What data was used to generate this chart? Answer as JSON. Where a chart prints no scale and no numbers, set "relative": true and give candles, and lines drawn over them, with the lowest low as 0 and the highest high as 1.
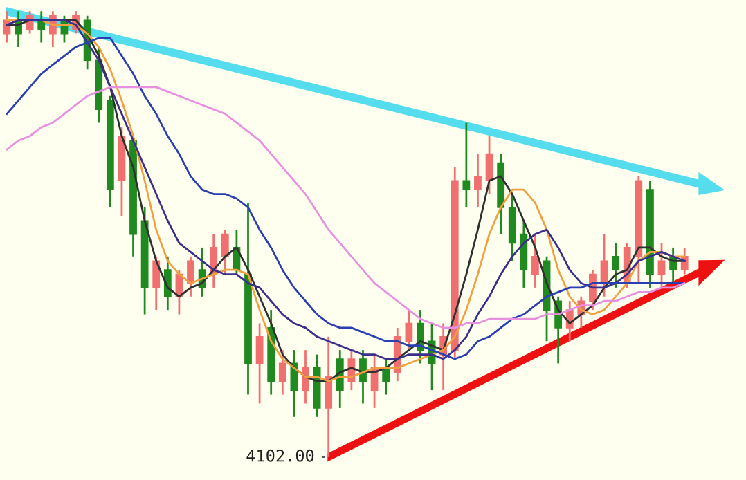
{
  "chart_data": {
    "type": "candlestick",
    "relative": true,
    "categories": [
      null,
      null,
      null,
      null,
      null,
      null,
      null,
      null,
      null,
      null,
      null,
      null,
      null,
      null,
      null,
      null,
      null,
      null,
      null,
      null,
      null,
      null,
      null,
      null,
      null,
      null,
      null,
      null,
      null,
      null,
      null,
      null,
      null,
      null,
      null,
      null,
      null,
      null,
      null,
      null,
      null,
      null,
      null,
      null,
      null,
      null,
      null,
      null,
      null,
      null,
      null,
      null,
      null,
      null,
      null,
      null,
      null,
      null,
      null,
      null
    ],
    "ohlc": [
      [
        0.95,
        1.0,
        0.93,
        0.98
      ],
      [
        0.98,
        1.0,
        0.92,
        0.95
      ],
      [
        0.96,
        1.0,
        0.95,
        0.99
      ],
      [
        0.98,
        1.0,
        0.93,
        0.96
      ],
      [
        0.95,
        1.0,
        0.92,
        0.99
      ],
      [
        0.98,
        0.99,
        0.93,
        0.95
      ],
      [
        0.96,
        1.0,
        0.95,
        0.99
      ],
      [
        0.98,
        0.99,
        0.87,
        0.89
      ],
      [
        0.89,
        0.92,
        0.75,
        0.78
      ],
      [
        0.8,
        0.81,
        0.56,
        0.6
      ],
      [
        0.62,
        0.74,
        0.54,
        0.72
      ],
      [
        0.71,
        0.72,
        0.45,
        0.5
      ],
      [
        0.53,
        0.56,
        0.32,
        0.38
      ],
      [
        0.38,
        0.45,
        0.33,
        0.44
      ],
      [
        0.42,
        0.45,
        0.33,
        0.36
      ],
      [
        0.36,
        0.42,
        0.32,
        0.41
      ],
      [
        0.39,
        0.45,
        0.36,
        0.44
      ],
      [
        0.42,
        0.47,
        0.36,
        0.38
      ],
      [
        0.41,
        0.5,
        0.38,
        0.47
      ],
      [
        0.45,
        0.51,
        0.41,
        0.5
      ],
      [
        0.47,
        0.51,
        0.41,
        0.42
      ],
      [
        0.41,
        0.57,
        0.14,
        0.21
      ],
      [
        0.21,
        0.3,
        0.12,
        0.27
      ],
      [
        0.29,
        0.33,
        0.14,
        0.17
      ],
      [
        0.17,
        0.24,
        0.14,
        0.21
      ],
      [
        0.21,
        0.24,
        0.09,
        0.15
      ],
      [
        0.15,
        0.24,
        0.12,
        0.2
      ],
      [
        0.2,
        0.23,
        0.09,
        0.11
      ],
      [
        0.11,
        0.27,
        0.0,
        0.18
      ],
      [
        0.22,
        0.24,
        0.11,
        0.15
      ],
      [
        0.17,
        0.24,
        0.15,
        0.22
      ],
      [
        0.22,
        0.24,
        0.12,
        0.17
      ],
      [
        0.15,
        0.23,
        0.11,
        0.2
      ],
      [
        0.2,
        0.22,
        0.14,
        0.17
      ],
      [
        0.19,
        0.29,
        0.17,
        0.27
      ],
      [
        0.26,
        0.33,
        0.24,
        0.3
      ],
      [
        0.3,
        0.33,
        0.21,
        0.24
      ],
      [
        0.26,
        0.3,
        0.15,
        0.21
      ],
      [
        0.23,
        0.3,
        0.15,
        0.27
      ],
      [
        0.24,
        0.65,
        0.22,
        0.62
      ],
      [
        0.62,
        0.75,
        0.56,
        0.6
      ],
      [
        0.6,
        0.68,
        0.56,
        0.63
      ],
      [
        0.62,
        0.72,
        0.59,
        0.68
      ],
      [
        0.66,
        0.68,
        0.5,
        0.56
      ],
      [
        0.56,
        0.59,
        0.44,
        0.48
      ],
      [
        0.5,
        0.53,
        0.38,
        0.42
      ],
      [
        0.41,
        0.5,
        0.38,
        0.45
      ],
      [
        0.44,
        0.45,
        0.26,
        0.33
      ],
      [
        0.35,
        0.36,
        0.21,
        0.29
      ],
      [
        0.29,
        0.35,
        0.26,
        0.33
      ],
      [
        0.32,
        0.36,
        0.29,
        0.35
      ],
      [
        0.35,
        0.42,
        0.33,
        0.41
      ],
      [
        0.39,
        0.5,
        0.36,
        0.44
      ],
      [
        0.45,
        0.48,
        0.38,
        0.42
      ],
      [
        0.39,
        0.48,
        0.38,
        0.47
      ],
      [
        0.45,
        0.63,
        0.39,
        0.62
      ],
      [
        0.6,
        0.62,
        0.38,
        0.41
      ],
      [
        0.41,
        0.48,
        0.38,
        0.44
      ],
      [
        0.45,
        0.47,
        0.39,
        0.42
      ],
      [
        0.42,
        0.47,
        0.41,
        0.45
      ]
    ],
    "series": [
      {
        "type": "line",
        "color": "#303030",
        "values": [
          0.97,
          0.97,
          0.98,
          0.98,
          0.98,
          0.98,
          0.98,
          0.95,
          0.9,
          0.83,
          0.72,
          0.65,
          0.53,
          0.44,
          0.38,
          0.36,
          0.38,
          0.39,
          0.42,
          0.45,
          0.47,
          0.42,
          0.36,
          0.3,
          0.23,
          0.2,
          0.18,
          0.17,
          0.17,
          0.19,
          0.2,
          0.19,
          0.19,
          0.2,
          0.22,
          0.24,
          0.26,
          0.25,
          0.24,
          0.32,
          0.41,
          0.51,
          0.62,
          0.63,
          0.59,
          0.53,
          0.47,
          0.39,
          0.33,
          0.3,
          0.32,
          0.34,
          0.38,
          0.41,
          0.42,
          0.47,
          0.47,
          0.45,
          0.44,
          0.44
        ]
      },
      {
        "type": "line",
        "color": "#f0a040",
        "values": [
          0.98,
          0.98,
          0.98,
          0.98,
          0.97,
          0.97,
          0.97,
          0.95,
          0.92,
          0.87,
          0.8,
          0.72,
          0.62,
          0.51,
          0.44,
          0.41,
          0.39,
          0.4,
          0.41,
          0.42,
          0.42,
          0.41,
          0.33,
          0.26,
          0.22,
          0.2,
          0.18,
          0.18,
          0.17,
          0.18,
          0.18,
          0.19,
          0.2,
          0.2,
          0.2,
          0.21,
          0.22,
          0.23,
          0.24,
          0.27,
          0.33,
          0.41,
          0.5,
          0.56,
          0.6,
          0.6,
          0.57,
          0.51,
          0.42,
          0.36,
          0.33,
          0.32,
          0.33,
          0.36,
          0.39,
          0.44,
          0.46,
          0.46,
          0.45,
          0.45
        ]
      },
      {
        "type": "line",
        "color": "#3a2f8a",
        "values": [
          0.97,
          0.98,
          0.98,
          0.98,
          0.98,
          0.98,
          0.97,
          0.93,
          0.89,
          0.83,
          0.77,
          0.71,
          0.65,
          0.59,
          0.53,
          0.48,
          0.46,
          0.44,
          0.42,
          0.41,
          0.41,
          0.39,
          0.38,
          0.35,
          0.32,
          0.3,
          0.29,
          0.27,
          0.26,
          0.25,
          0.24,
          0.23,
          0.23,
          0.22,
          0.22,
          0.23,
          0.23,
          0.23,
          0.22,
          0.24,
          0.27,
          0.32,
          0.36,
          0.41,
          0.45,
          0.48,
          0.5,
          0.51,
          0.47,
          0.42,
          0.39,
          0.38,
          0.38,
          0.39,
          0.41,
          0.44,
          0.45,
          0.46,
          0.45,
          0.44
        ]
      },
      {
        "type": "line",
        "color": "#2a3fb0",
        "values": [
          0.77,
          0.8,
          0.83,
          0.86,
          0.88,
          0.9,
          0.92,
          0.93,
          0.94,
          0.94,
          0.9,
          0.86,
          0.81,
          0.77,
          0.72,
          0.68,
          0.63,
          0.6,
          0.59,
          0.59,
          0.58,
          0.56,
          0.51,
          0.47,
          0.42,
          0.38,
          0.35,
          0.32,
          0.3,
          0.29,
          0.29,
          0.28,
          0.27,
          0.26,
          0.26,
          0.25,
          0.25,
          0.24,
          0.23,
          0.22,
          0.23,
          0.26,
          0.27,
          0.29,
          0.31,
          0.32,
          0.34,
          0.36,
          0.37,
          0.38,
          0.38,
          0.39,
          0.39,
          0.39,
          0.39,
          0.39,
          0.39,
          0.39,
          0.39,
          0.39
        ]
      },
      {
        "type": "line",
        "color": "#e890e0",
        "values": [
          0.69,
          0.71,
          0.72,
          0.74,
          0.75,
          0.77,
          0.79,
          0.81,
          0.82,
          0.83,
          0.83,
          0.83,
          0.83,
          0.83,
          0.82,
          0.81,
          0.8,
          0.79,
          0.78,
          0.77,
          0.75,
          0.73,
          0.71,
          0.68,
          0.65,
          0.62,
          0.59,
          0.55,
          0.51,
          0.48,
          0.45,
          0.42,
          0.39,
          0.37,
          0.35,
          0.33,
          0.31,
          0.3,
          0.29,
          0.29,
          0.3,
          0.3,
          0.31,
          0.31,
          0.31,
          0.31,
          0.31,
          0.32,
          0.32,
          0.33,
          0.34,
          0.34,
          0.35,
          0.35,
          0.36,
          0.37,
          0.37,
          0.38,
          0.38,
          0.39
        ]
      }
    ],
    "annotations": [
      "4102.00"
    ]
  }
}
